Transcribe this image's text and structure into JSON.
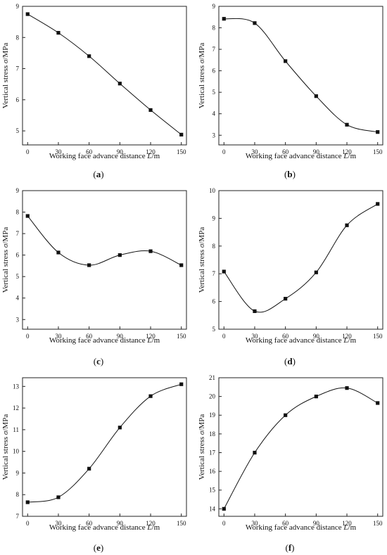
{
  "chart_data": [
    {
      "type": "line",
      "panel_label": "(a)",
      "xlabel": "Working face advance distance L/m",
      "ylabel": "Vertical stress σ/MPa",
      "x": [
        0,
        30,
        60,
        90,
        120,
        150
      ],
      "y": [
        8.75,
        8.15,
        7.4,
        6.52,
        5.67,
        4.88
      ],
      "xticks": [
        0,
        30,
        60,
        90,
        120,
        150
      ],
      "yticks": [
        5,
        6,
        7,
        8,
        9
      ],
      "xlim": [
        -5,
        155
      ],
      "ylim": [
        4.55,
        9.0
      ]
    },
    {
      "type": "line",
      "panel_label": "(b)",
      "xlabel": "Working face advance distance L/m",
      "ylabel": "Vertical stress σ/MPa",
      "x": [
        0,
        30,
        60,
        90,
        120,
        150
      ],
      "y": [
        8.42,
        8.22,
        6.45,
        4.82,
        3.49,
        3.15
      ],
      "xticks": [
        0,
        30,
        60,
        90,
        120,
        150
      ],
      "yticks": [
        3,
        4,
        5,
        6,
        7,
        8,
        9
      ],
      "xlim": [
        -5,
        155
      ],
      "ylim": [
        2.55,
        9.0
      ]
    },
    {
      "type": "line",
      "panel_label": "(c)",
      "xlabel": "Working face advance distance L/m",
      "ylabel": "Vertical stress σ/MPa",
      "x": [
        0,
        30,
        60,
        90,
        120,
        150
      ],
      "y": [
        7.82,
        6.12,
        5.53,
        6.0,
        6.18,
        5.53
      ],
      "xticks": [
        0,
        30,
        60,
        90,
        120,
        150
      ],
      "yticks": [
        3,
        4,
        5,
        6,
        7,
        8,
        9
      ],
      "xlim": [
        -5,
        155
      ],
      "ylim": [
        2.55,
        9.0
      ]
    },
    {
      "type": "line",
      "panel_label": "(d)",
      "xlabel": "Working face advance distance L/m",
      "ylabel": "Vertical stress σ/MPa",
      "x": [
        0,
        30,
        60,
        90,
        120,
        150
      ],
      "y": [
        7.08,
        5.65,
        6.1,
        7.05,
        8.75,
        9.52
      ],
      "xticks": [
        0,
        30,
        60,
        90,
        120,
        150
      ],
      "yticks": [
        5,
        6,
        7,
        8,
        9,
        10
      ],
      "xlim": [
        -5,
        155
      ],
      "ylim": [
        5.0,
        10.0
      ]
    },
    {
      "type": "line",
      "panel_label": "(e)",
      "xlabel": "Working face advance distance L/m",
      "ylabel": "Vertical stress σ/MPa",
      "x": [
        0,
        30,
        60,
        90,
        120,
        150
      ],
      "y": [
        7.65,
        7.88,
        9.2,
        11.1,
        12.55,
        13.1
      ],
      "xticks": [
        0,
        30,
        60,
        90,
        120,
        150
      ],
      "yticks": [
        7,
        8,
        9,
        10,
        11,
        12,
        13
      ],
      "xlim": [
        -5,
        155
      ],
      "ylim": [
        7.0,
        13.4
      ]
    },
    {
      "type": "line",
      "panel_label": "(f)",
      "xlabel": "Working face advance distance L/m",
      "ylabel": "Vertical stress σ/MPa",
      "x": [
        0,
        30,
        60,
        90,
        120,
        150
      ],
      "y": [
        14.0,
        17.0,
        19.0,
        20.0,
        20.45,
        19.65
      ],
      "xticks": [
        0,
        30,
        60,
        90,
        120,
        150
      ],
      "yticks": [
        14,
        15,
        16,
        17,
        18,
        19,
        20,
        21
      ],
      "xlim": [
        -5,
        155
      ],
      "ylim": [
        13.6,
        21.0
      ]
    }
  ]
}
